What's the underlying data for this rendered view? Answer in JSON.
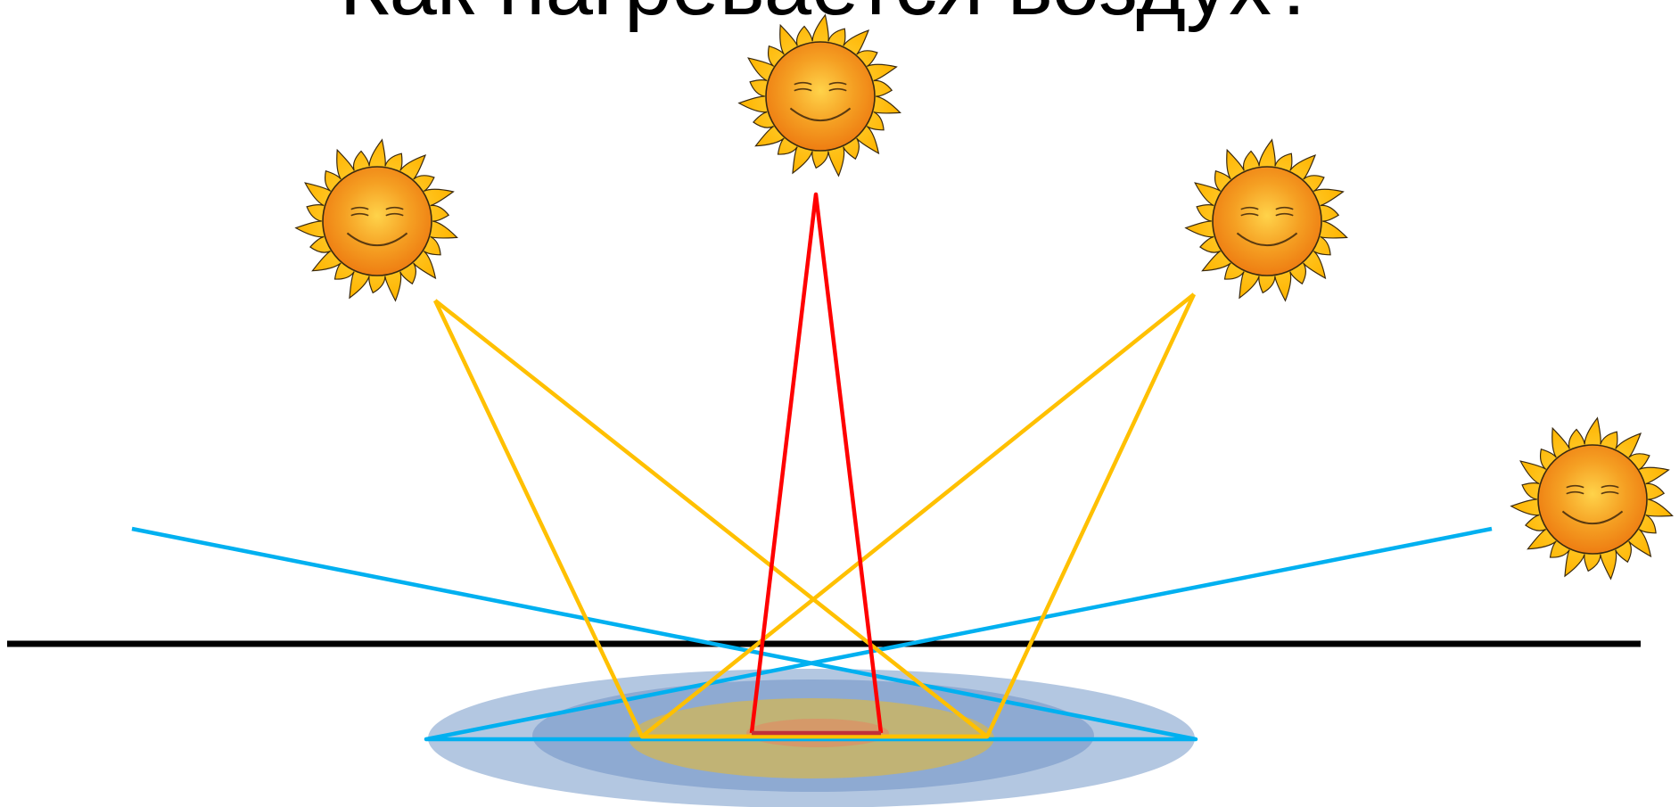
{
  "slide": {
    "title": "Как нагревается воздух?"
  },
  "colors": {
    "background": "#ffffff",
    "ground_line": "#000000",
    "sun_ray": "#ffc000",
    "sun_disc": "#f39a1e",
    "sun_face": "#5a3a10",
    "ray_vertical": "#ff0000",
    "ray_oblique": "#ffc000",
    "ray_low": "#00b0f0",
    "heated_outer": "#b3c7e1",
    "heated_middle": "#8eaad2",
    "heated_inner": "#c6b46a",
    "heated_core": "#d79668"
  },
  "icons": [
    "sun-icon"
  ]
}
